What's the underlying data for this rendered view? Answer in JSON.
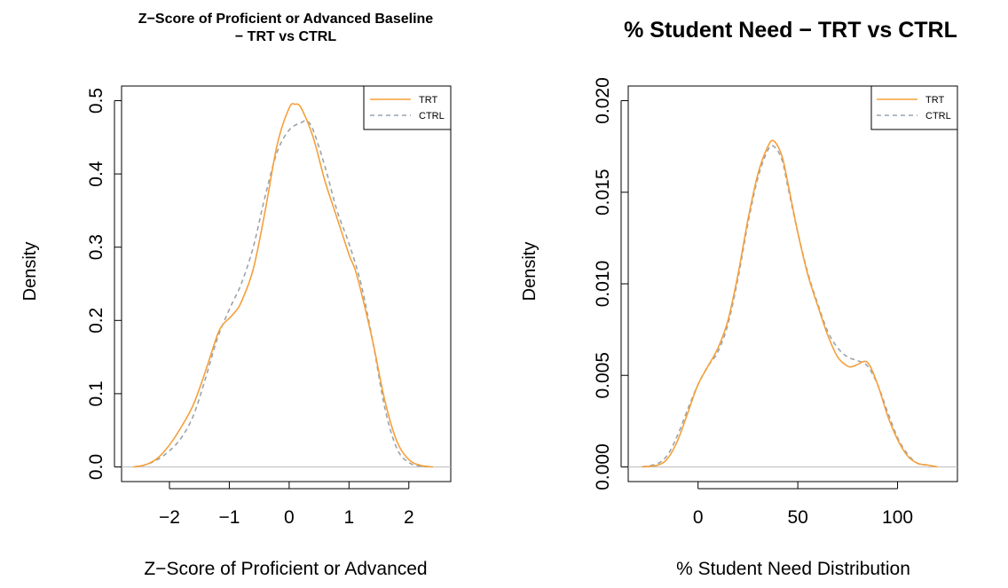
{
  "chart_data": [
    {
      "type": "line",
      "title_line1": "Z−Score of Proficient or Advanced Baseline",
      "title_line2": "− TRT vs CTRL",
      "xlabel": "Z−Score of Proficient or Advanced",
      "ylabel": "Density",
      "xlim": [
        -2.8,
        2.7
      ],
      "ylim": [
        -0.02,
        0.52
      ],
      "xticks": [
        -2,
        -1,
        0,
        1,
        2
      ],
      "xtick_labels": [
        "−2",
        "−1",
        "0",
        "1",
        "2"
      ],
      "yticks": [
        0.0,
        0.1,
        0.2,
        0.3,
        0.4,
        0.5
      ],
      "ytick_labels": [
        "0.0",
        "0.1",
        "0.2",
        "0.3",
        "0.4",
        "0.5"
      ],
      "legend_position": "top-right",
      "series": [
        {
          "name": "TRT",
          "color": "#f5a03a",
          "dash": "solid",
          "x": [
            -2.6,
            -2.4,
            -2.2,
            -2.0,
            -1.8,
            -1.6,
            -1.4,
            -1.2,
            -1.1,
            -1.0,
            -0.9,
            -0.8,
            -0.6,
            -0.4,
            -0.2,
            0.0,
            0.1,
            0.2,
            0.4,
            0.6,
            0.8,
            1.0,
            1.1,
            1.2,
            1.4,
            1.6,
            1.8,
            2.0,
            2.2,
            2.4
          ],
          "y": [
            0.0,
            0.003,
            0.012,
            0.03,
            0.055,
            0.085,
            0.13,
            0.18,
            0.195,
            0.203,
            0.212,
            0.225,
            0.27,
            0.35,
            0.44,
            0.49,
            0.495,
            0.49,
            0.45,
            0.39,
            0.34,
            0.29,
            0.27,
            0.24,
            0.17,
            0.09,
            0.035,
            0.01,
            0.002,
            0.0
          ]
        },
        {
          "name": "CTRL",
          "color": "#9aa3ad",
          "dash": "dashed",
          "x": [
            -2.6,
            -2.4,
            -2.2,
            -2.0,
            -1.8,
            -1.6,
            -1.4,
            -1.2,
            -1.0,
            -0.8,
            -0.6,
            -0.4,
            -0.2,
            0.0,
            0.2,
            0.3,
            0.4,
            0.6,
            0.8,
            1.0,
            1.2,
            1.4,
            1.6,
            1.8,
            2.0,
            2.2,
            2.4
          ],
          "y": [
            0.0,
            0.003,
            0.01,
            0.022,
            0.04,
            0.07,
            0.12,
            0.175,
            0.215,
            0.25,
            0.3,
            0.37,
            0.43,
            0.46,
            0.47,
            0.472,
            0.46,
            0.41,
            0.35,
            0.305,
            0.25,
            0.17,
            0.08,
            0.025,
            0.006,
            0.001,
            0.0
          ]
        }
      ]
    },
    {
      "type": "line",
      "title_line1": "% Student Need − TRT vs CTRL",
      "title_line2": "",
      "xlabel": "% Student Need Distribution",
      "ylabel": "Density",
      "xlim": [
        -35,
        130
      ],
      "ylim": [
        -0.0008,
        0.0208
      ],
      "xticks": [
        0,
        50,
        100
      ],
      "xtick_labels": [
        "0",
        "50",
        "100"
      ],
      "yticks": [
        0.0,
        0.005,
        0.01,
        0.015,
        0.02
      ],
      "ytick_labels": [
        "0.000",
        "0.005",
        "0.010",
        "0.015",
        "0.020"
      ],
      "legend_position": "top-right",
      "series": [
        {
          "name": "TRT",
          "color": "#f5a03a",
          "dash": "solid",
          "x": [
            -28,
            -20,
            -15,
            -10,
            -5,
            0,
            5,
            10,
            15,
            20,
            25,
            30,
            35,
            38,
            42,
            45,
            50,
            55,
            60,
            65,
            70,
            75,
            78,
            80,
            85,
            90,
            95,
            100,
            105,
            110,
            115,
            120
          ],
          "y": [
            0.0,
            0.0001,
            0.0005,
            0.0015,
            0.003,
            0.0045,
            0.0055,
            0.0065,
            0.008,
            0.0105,
            0.0135,
            0.016,
            0.0175,
            0.0178,
            0.017,
            0.0155,
            0.0128,
            0.0105,
            0.0088,
            0.0072,
            0.006,
            0.0055,
            0.0055,
            0.0056,
            0.0057,
            0.0045,
            0.0028,
            0.0015,
            0.0006,
            0.0002,
            0.0001,
            0.0
          ]
        },
        {
          "name": "CTRL",
          "color": "#9aa3ad",
          "dash": "dashed",
          "x": [
            -28,
            -20,
            -15,
            -10,
            -5,
            0,
            5,
            10,
            15,
            20,
            25,
            30,
            35,
            38,
            42,
            45,
            50,
            55,
            60,
            65,
            70,
            75,
            80,
            85,
            90,
            95,
            100,
            105,
            110,
            115,
            120
          ],
          "y": [
            0.0,
            0.0002,
            0.0007,
            0.0018,
            0.0032,
            0.0045,
            0.0055,
            0.0063,
            0.0078,
            0.0103,
            0.0133,
            0.0158,
            0.0173,
            0.0175,
            0.0168,
            0.0153,
            0.0128,
            0.0106,
            0.0089,
            0.0074,
            0.0065,
            0.006,
            0.0058,
            0.0055,
            0.0045,
            0.003,
            0.0016,
            0.0007,
            0.0002,
            0.0001,
            0.0
          ]
        }
      ]
    }
  ]
}
